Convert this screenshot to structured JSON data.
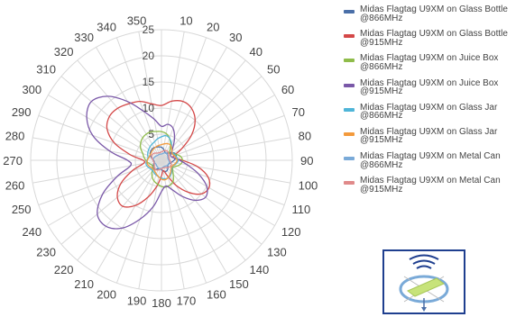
{
  "chart_data": {
    "type": "polar",
    "title": "",
    "angular_ticks": [
      0,
      10,
      20,
      30,
      40,
      50,
      60,
      70,
      80,
      90,
      100,
      110,
      120,
      130,
      140,
      150,
      160,
      170,
      180,
      190,
      200,
      210,
      220,
      230,
      240,
      250,
      260,
      270,
      280,
      290,
      300,
      310,
      320,
      330,
      340,
      350
    ],
    "angular_tick_labels": [
      "",
      "10",
      "20",
      "30",
      "40",
      "50",
      "60",
      "70",
      "80",
      "90",
      "100",
      "110",
      "120",
      "130",
      "140",
      "150",
      "160",
      "170",
      "180",
      "190",
      "200",
      "210",
      "220",
      "230",
      "240",
      "250",
      "260",
      "270",
      "280",
      "290",
      "300",
      "310",
      "320",
      "330",
      "340",
      "350"
    ],
    "radial_range": [
      0,
      25
    ],
    "radial_ticks": [
      5,
      10,
      15,
      20,
      25
    ],
    "radial_tick_labels": [
      "5",
      "10",
      "15",
      "20",
      "25"
    ],
    "angle_zero": "top",
    "angle_direction": "clockwise",
    "grid": true,
    "legend_position": "right",
    "series": [
      {
        "name": "Midas Flagtag U9XM on Glass Bottle @866MHz",
        "color": "#4a6fa8",
        "r": [
          2.5,
          2.2,
          1.8,
          1.6,
          1.8,
          2.3,
          2.8,
          3.0,
          2.8,
          2.4,
          2.0,
          1.7,
          1.5,
          1.6,
          1.9,
          2.2,
          2.3,
          2.1,
          1.8,
          1.6,
          1.7,
          2.0,
          2.2,
          2.1,
          1.8,
          1.5,
          1.4,
          1.5,
          1.8,
          2.2,
          2.5,
          2.7,
          2.8,
          2.8,
          2.7,
          2.6
        ]
      },
      {
        "name": "Midas Flagtag U9XM on Glass Bottle @915MHz",
        "color": "#d44848",
        "r": [
          10.5,
          11.5,
          12,
          11.5,
          10,
          7.5,
          4.5,
          2.5,
          2.5,
          4,
          7,
          9.5,
          10.5,
          10,
          8,
          5.5,
          3,
          2,
          3,
          5,
          7.5,
          10,
          11.5,
          11,
          9,
          6,
          3.5,
          3.5,
          6,
          9.5,
          12,
          13,
          13,
          12.5,
          12,
          11
        ]
      },
      {
        "name": "Midas Flagtag U9XM on Juice Box @866MHz",
        "color": "#8fbc4a",
        "r": [
          5.5,
          5.2,
          4.5,
          3.5,
          2.5,
          2.0,
          2.5,
          3.2,
          3.8,
          4.0,
          3.8,
          3.2,
          2.6,
          2.8,
          3.5,
          4.5,
          5.0,
          5.2,
          5.0,
          4.6,
          4.2,
          3.6,
          2.8,
          2.2,
          2.0,
          2.2,
          2.6,
          3.0,
          3.4,
          3.8,
          4.6,
          5.2,
          5.6,
          5.8,
          5.8,
          5.6
        ]
      },
      {
        "name": "Midas Flagtag U9XM on Juice Box @915MHz",
        "color": "#7a58a8",
        "r": [
          6.5,
          7,
          6.5,
          5,
          3.5,
          2.5,
          2.0,
          2.0,
          2.5,
          3.5,
          5,
          7.5,
          10,
          11,
          10,
          8,
          6,
          5,
          6,
          9,
          12,
          15,
          16.5,
          16,
          13,
          9,
          6,
          6.5,
          10,
          14,
          16.5,
          17.5,
          16,
          13,
          10,
          8
        ]
      },
      {
        "name": "Midas Flagtag U9XM on Glass Jar @866MHz",
        "color": "#4fb5d8",
        "r": [
          4.5,
          4.8,
          4.5,
          3.8,
          3.0,
          2.6,
          2.6,
          2.8,
          3.0,
          3.2,
          3.0,
          2.6,
          2.4,
          2.6,
          3.0,
          3.4,
          3.6,
          3.6,
          3.4,
          3.2,
          3.0,
          2.8,
          2.6,
          2.6,
          2.8,
          3.0,
          3.0,
          2.8,
          2.6,
          2.8,
          3.0,
          3.2,
          3.4,
          3.6,
          3.8,
          4.2
        ]
      },
      {
        "name": "Midas Flagtag U9XM on Glass Jar @915MHz",
        "color": "#f39a3c",
        "r": [
          3.0,
          3.2,
          3.4,
          3.4,
          3.0,
          2.6,
          2.4,
          2.6,
          2.8,
          3.0,
          2.8,
          2.5,
          2.3,
          2.4,
          2.8,
          3.2,
          3.6,
          3.8,
          3.6,
          3.2,
          2.8,
          2.5,
          2.3,
          2.3,
          2.5,
          2.7,
          2.8,
          2.7,
          2.5,
          2.4,
          2.4,
          2.5,
          2.6,
          2.7,
          2.8,
          2.9
        ]
      },
      {
        "name": "Midas Flagtag U9XM on Metal Can @866MHz",
        "color": "#7aaad8",
        "r": [
          1.2,
          1.3,
          1.5,
          1.6,
          1.6,
          1.5,
          1.4,
          1.3,
          1.3,
          1.4,
          1.5,
          1.6,
          1.6,
          1.5,
          1.4,
          1.3,
          1.3,
          1.4,
          1.5,
          1.6,
          1.6,
          1.5,
          1.4,
          1.3,
          1.3,
          1.4,
          1.5,
          1.6,
          1.6,
          1.5,
          1.4,
          1.3,
          1.2,
          1.2,
          1.2,
          1.2
        ]
      },
      {
        "name": "Midas Flagtag U9XM on Metal Can @915MHz",
        "color": "#e08a8a",
        "r": [
          1.6,
          1.8,
          2.0,
          2.1,
          2.0,
          1.8,
          1.6,
          1.5,
          1.5,
          1.6,
          1.8,
          2.0,
          2.1,
          2.0,
          1.8,
          1.6,
          1.5,
          1.5,
          1.6,
          1.8,
          2.0,
          2.1,
          2.0,
          1.8,
          1.6,
          1.5,
          1.5,
          1.6,
          1.8,
          2.0,
          2.1,
          2.0,
          1.8,
          1.6,
          1.5,
          1.5
        ]
      }
    ]
  },
  "colors": {
    "grid": "#d8d8d8",
    "tick_text": "#444444",
    "diagram_border": "#1f3f8f",
    "diagram_accent": "#c7e37a"
  },
  "diagram": {
    "icon": "tag-orientation-diagram"
  }
}
